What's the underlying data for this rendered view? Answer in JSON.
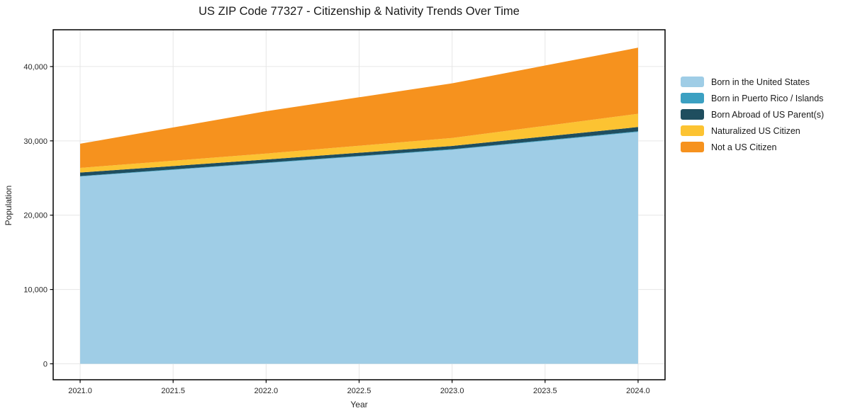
{
  "figure": {
    "title": "US ZIP Code 77327 - Citizenship & Nativity Trends Over Time"
  },
  "chart_data": {
    "type": "area",
    "stacked": true,
    "title": "US ZIP Code 77327 - Citizenship & Nativity Trends Over Time",
    "xlabel": "Year",
    "ylabel": "Population",
    "x": [
      2021,
      2022,
      2023,
      2024
    ],
    "series": [
      {
        "name": "Born in the United States",
        "color": "#9fcde6",
        "values": [
          25200,
          27000,
          28800,
          31200
        ]
      },
      {
        "name": "Born in Puerto Rico / Islands",
        "color": "#3ba0c2",
        "values": [
          60,
          70,
          80,
          90
        ]
      },
      {
        "name": "Born Abroad of US Parent(s)",
        "color": "#1f4e5f",
        "values": [
          480,
          420,
          430,
          570
        ]
      },
      {
        "name": "Naturalized US Citizen",
        "color": "#fcc332",
        "values": [
          620,
          800,
          1080,
          1780
        ]
      },
      {
        "name": "Not a US Citizen",
        "color": "#f6921e",
        "values": [
          3250,
          5700,
          7350,
          8900
        ]
      }
    ],
    "totals": [
      29610,
      33990,
      37740,
      42540
    ],
    "xlim": [
      2020.855,
      2024.145
    ],
    "ylim": [
      -2145,
      44950
    ],
    "xticks": {
      "values": [
        2021.0,
        2021.5,
        2022.0,
        2022.5,
        2023.0,
        2023.5,
        2024.0
      ],
      "labels": [
        "2021.0",
        "2021.5",
        "2022.0",
        "2022.5",
        "2023.0",
        "2023.5",
        "2024.0"
      ]
    },
    "yticks": {
      "values": [
        0,
        10000,
        20000,
        30000,
        40000
      ],
      "labels": [
        "0",
        "10,000",
        "20,000",
        "30,000",
        "40,000"
      ]
    },
    "grid": true,
    "legend_position": "right-outside",
    "colors": {
      "gridline": "#e6e6e6",
      "spine": "#000000",
      "tick_label": "#262626",
      "title": "#1a1a1a",
      "background": "#ffffff"
    }
  }
}
